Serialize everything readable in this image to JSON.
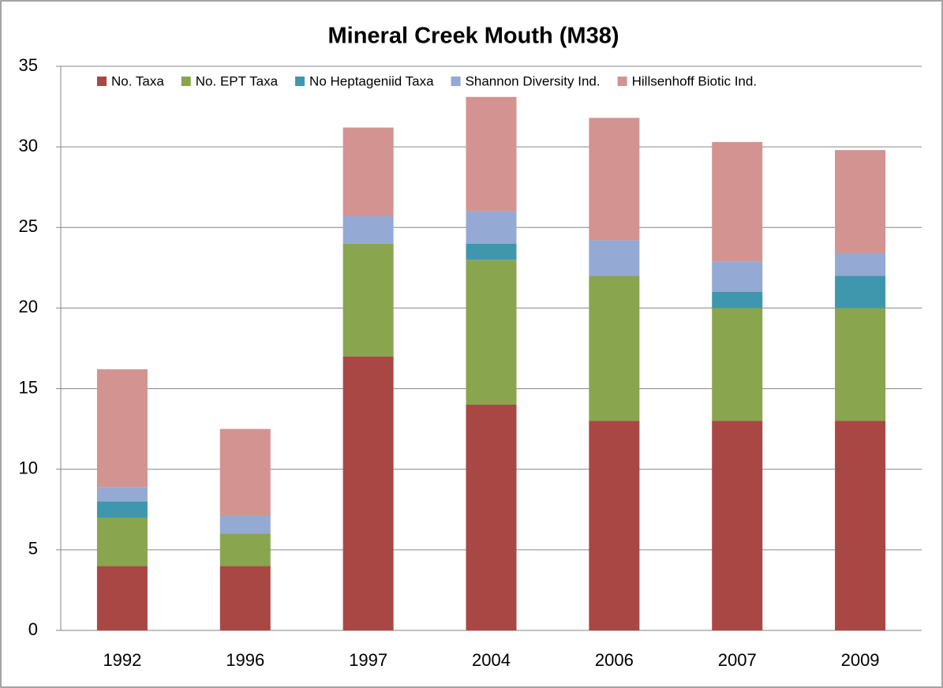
{
  "chart_data": {
    "type": "stacked_bar",
    "title": "Mineral Creek Mouth (M38)",
    "categories": [
      "1992",
      "1996",
      "1997",
      "2004",
      "2006",
      "2007",
      "2009"
    ],
    "series": [
      {
        "name": "No. Taxa",
        "color": "#a94744",
        "values": [
          4,
          4,
          17,
          14,
          13,
          13,
          13
        ]
      },
      {
        "name": "No. EPT Taxa",
        "color": "#89a54e",
        "values": [
          3,
          2,
          7,
          9,
          9,
          7,
          7
        ]
      },
      {
        "name": "No Heptageniid Taxa",
        "color": "#3f97ae",
        "values": [
          1,
          0,
          0,
          1,
          0,
          1,
          2
        ]
      },
      {
        "name": "Shannon Diversity Ind.",
        "color": "#94a9d3",
        "values": [
          0.9,
          1.1,
          1.7,
          2.0,
          2.2,
          1.9,
          1.4
        ]
      },
      {
        "name": "Hillsenhoff Biotic Ind.",
        "color": "#d39391",
        "values": [
          7.3,
          5.4,
          5.5,
          7.1,
          7.6,
          7.4,
          6.4
        ]
      }
    ],
    "ylim": [
      0,
      35
    ],
    "yticks": [
      0,
      5,
      10,
      15,
      20,
      25,
      30,
      35
    ],
    "grid": true,
    "legend": "top"
  }
}
